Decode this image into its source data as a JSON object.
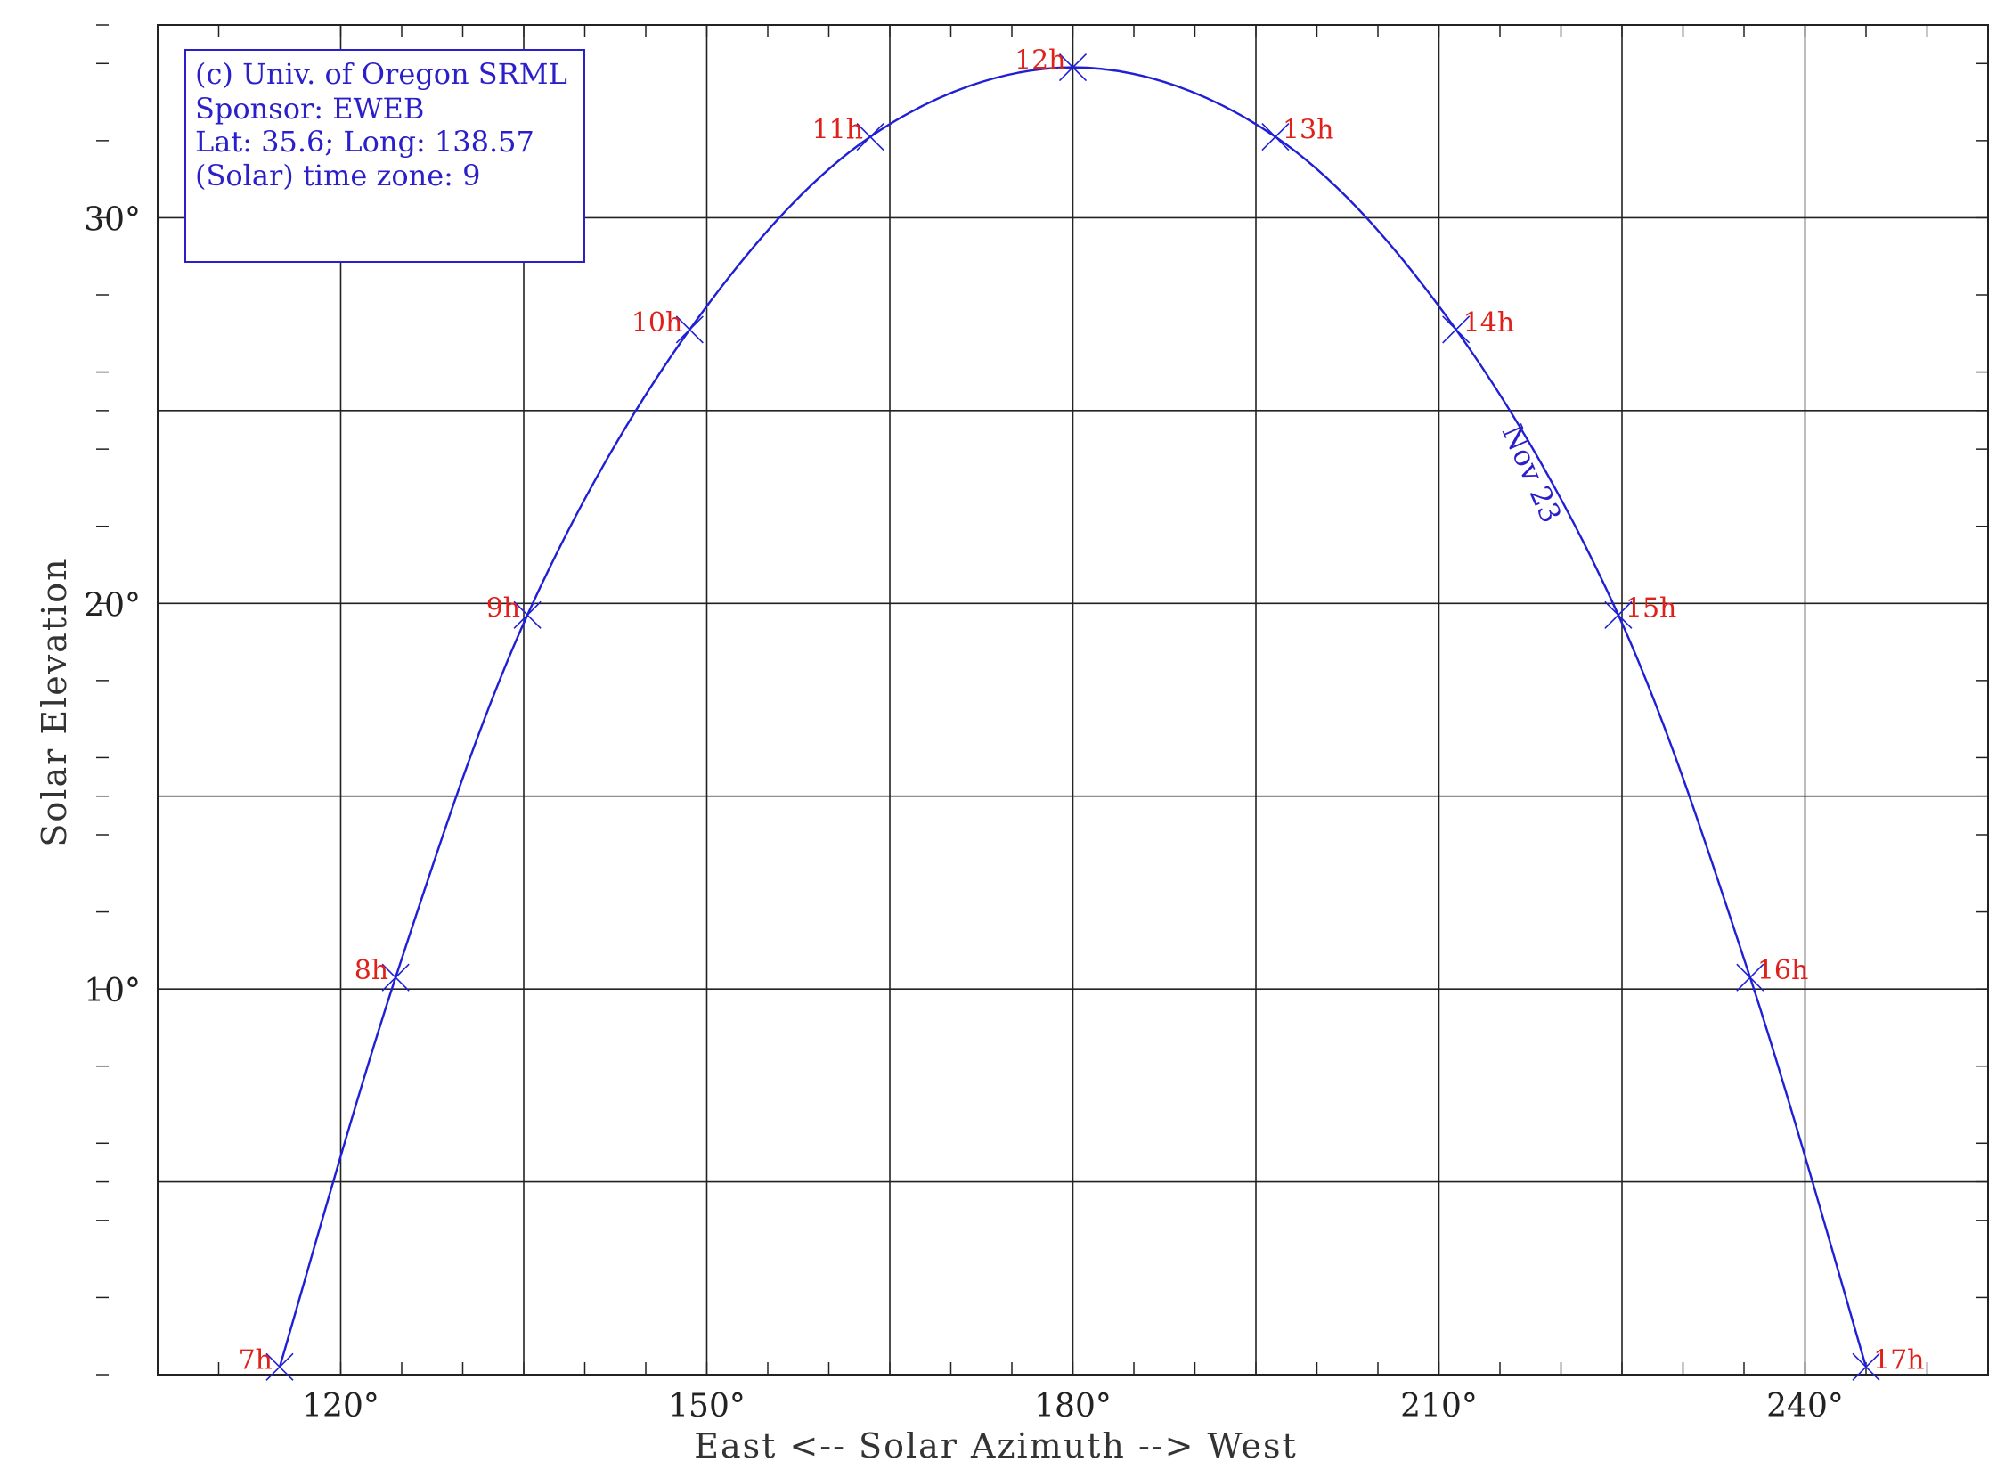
{
  "chart_data": {
    "type": "line",
    "xlabel": "East <-- Solar Azimuth --> West",
    "ylabel": "Solar Elevation",
    "xlim": [
      105,
      255
    ],
    "ylim": [
      0,
      35
    ],
    "x_ticks": [
      {
        "value": 120,
        "label": "120°"
      },
      {
        "value": 150,
        "label": "150°"
      },
      {
        "value": 180,
        "label": "180°"
      },
      {
        "value": 210,
        "label": "210°"
      },
      {
        "value": 240,
        "label": "240°"
      }
    ],
    "y_ticks": [
      {
        "value": 10,
        "label": "10°"
      },
      {
        "value": 20,
        "label": "20°"
      },
      {
        "value": 30,
        "label": "30°"
      }
    ],
    "grid_x": [
      120,
      135,
      150,
      165,
      180,
      195,
      210,
      225,
      240
    ],
    "grid_y": [
      5,
      10,
      15,
      20,
      25,
      30
    ],
    "minor_y": [
      2,
      4,
      6,
      8,
      12,
      14,
      16,
      18,
      22,
      24,
      26,
      28,
      32,
      34
    ],
    "minor_x": [
      110,
      125,
      130,
      140,
      145,
      155,
      160,
      170,
      175,
      185,
      190,
      200,
      205,
      215,
      220,
      230,
      235,
      245,
      250
    ],
    "info_box": [
      "(c) Univ. of Oregon SRML",
      "Sponsor: EWEB",
      "Lat: 35.6; Long: 138.57",
      "(Solar) time zone: 9"
    ],
    "series": [
      {
        "name": "Nov 23",
        "color": "#1f1fd6",
        "points": [
          {
            "hour": "7h",
            "az": 115,
            "el": 0.2
          },
          {
            "hour": "8h",
            "az": 124.5,
            "el": 10.3
          },
          {
            "hour": "9h",
            "az": 135.3,
            "el": 19.7
          },
          {
            "hour": "10h",
            "az": 148.6,
            "el": 27.1
          },
          {
            "hour": "11h",
            "az": 163.4,
            "el": 32.1
          },
          {
            "hour": "12h",
            "az": 180,
            "el": 33.9
          },
          {
            "hour": "13h",
            "az": 196.6,
            "el": 32.1
          },
          {
            "hour": "14h",
            "az": 211.4,
            "el": 27.1
          },
          {
            "hour": "15h",
            "az": 224.7,
            "el": 19.7
          },
          {
            "hour": "16h",
            "az": 235.5,
            "el": 10.3
          },
          {
            "hour": "17h",
            "az": 245,
            "el": 0.2
          }
        ]
      }
    ],
    "colors": {
      "curve": "#1f1fd6",
      "hour_label": "#e0201a",
      "info_text": "#2a1fc8",
      "grid": "#222222"
    }
  }
}
